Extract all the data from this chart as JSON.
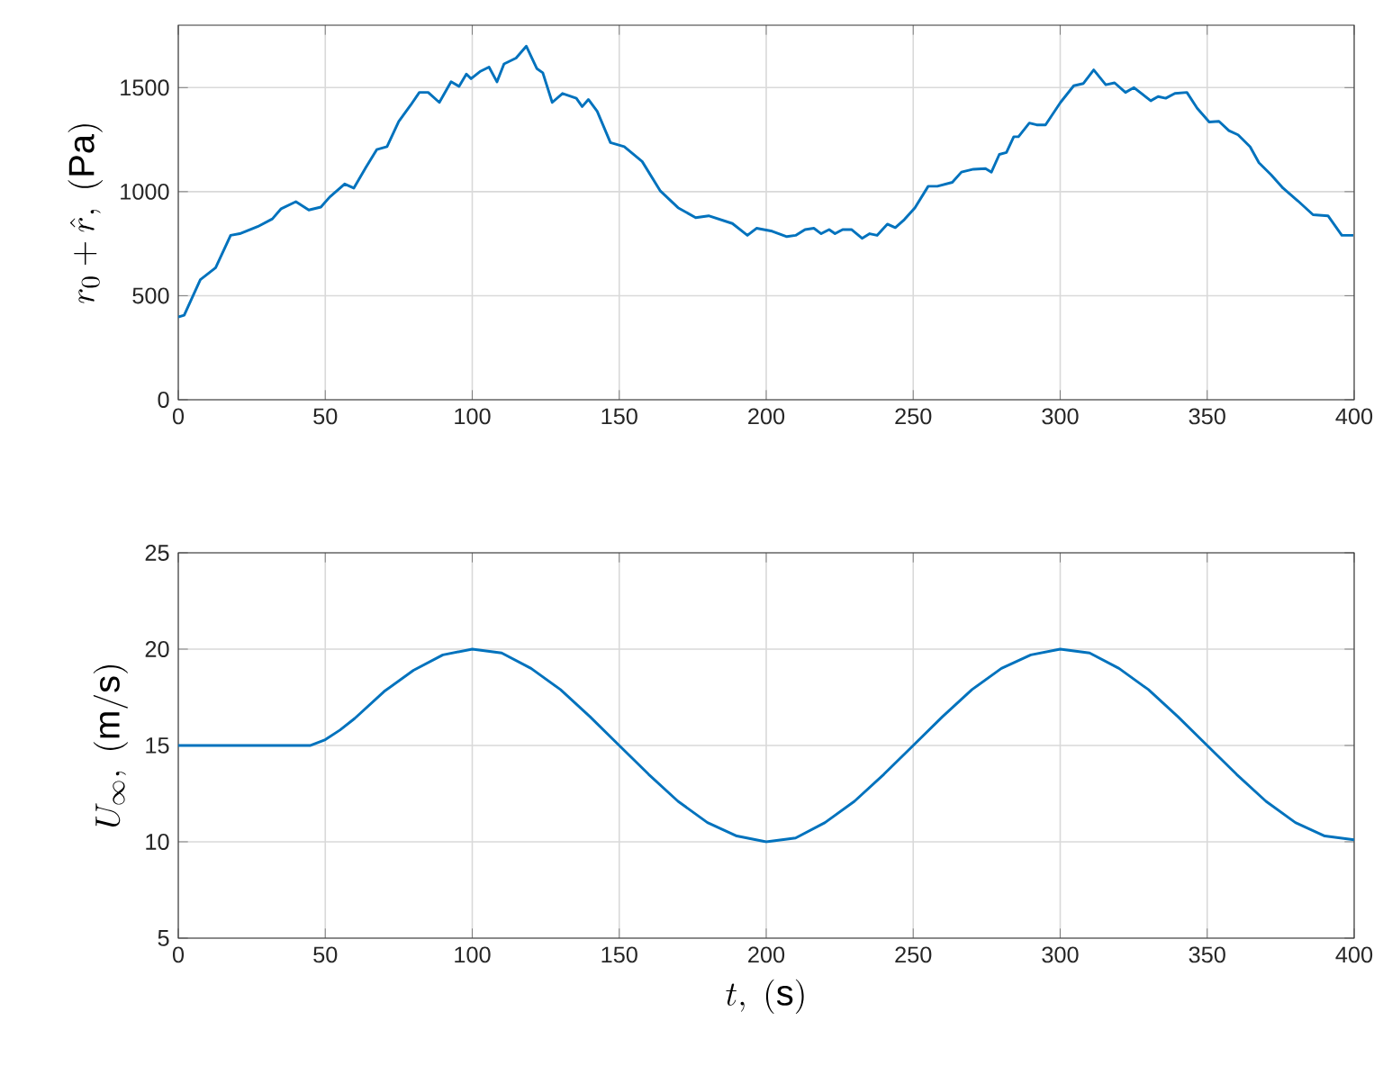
{
  "chart_data": [
    {
      "type": "line",
      "ylabel": "r_0+\\hat{r},\\ (\\mathrm{Pa})",
      "x": [
        0,
        2,
        7.5,
        12.7,
        17.8,
        20.9,
        27,
        32,
        35,
        40,
        44.4,
        48.5,
        51.5,
        56.6,
        59.7,
        63.8,
        67.5,
        71,
        75,
        79,
        82,
        85,
        88.8,
        92.8,
        95.5,
        98,
        99.6,
        102.6,
        105.7,
        108.4,
        110.8,
        114.9,
        118.4,
        122,
        124,
        127.2,
        130.7,
        135.4,
        137.4,
        139.5,
        142.5,
        147,
        151.7,
        157.8,
        164,
        170,
        176,
        180.4,
        188.5,
        193.6,
        196.7,
        202,
        207,
        210,
        213.2,
        216.2,
        218.7,
        221.4,
        223.4,
        226,
        229,
        232.6,
        235.2,
        237.7,
        241.2,
        243.9,
        247,
        250.6,
        255.1,
        258.2,
        263.3,
        266.4,
        270.5,
        274.6,
        276.6,
        279.3,
        281.7,
        284.2,
        285.8,
        289.5,
        292,
        295,
        300.1,
        304.6,
        307.9,
        311.4,
        315.5,
        318.5,
        322.2,
        325.1,
        330.8,
        333.3,
        335.9,
        339,
        343.1,
        346.6,
        350.7,
        354,
        357.4,
        360.5,
        364.6,
        367.6,
        371.7,
        375.8,
        380.9,
        386,
        391.1,
        395.8,
        399.7
      ],
      "series": [
        {
          "color": "#0072bd",
          "values": [
            398,
            406,
            577,
            634,
            790,
            798,
            832,
            869,
            918,
            952,
            912,
            926,
            974,
            1037,
            1017,
            1116,
            1202,
            1216,
            1338,
            1415,
            1477,
            1477,
            1429,
            1528,
            1506,
            1565,
            1543,
            1577,
            1599,
            1528,
            1614,
            1642,
            1699,
            1591,
            1571,
            1429,
            1472,
            1449,
            1409,
            1443,
            1386,
            1236,
            1216,
            1145,
            1003,
            923,
            875,
            884,
            847,
            790,
            824,
            810,
            784,
            790,
            818,
            824,
            798,
            818,
            798,
            818,
            818,
            776,
            798,
            790,
            844,
            827,
            866,
            923,
            1026,
            1026,
            1045,
            1094,
            1108,
            1111,
            1094,
            1179,
            1188,
            1264,
            1264,
            1330,
            1321,
            1321,
            1429,
            1509,
            1520,
            1585,
            1514,
            1523,
            1477,
            1500,
            1437,
            1457,
            1449,
            1472,
            1477,
            1401,
            1335,
            1338,
            1293,
            1273,
            1216,
            1139,
            1082,
            1017,
            955,
            889,
            884,
            790,
            790
          ]
        }
      ],
      "xlim": [
        0,
        400
      ],
      "xticks": [
        0,
        50,
        100,
        150,
        200,
        250,
        300,
        350,
        400
      ],
      "ylim": [
        0,
        1800
      ],
      "yticks": [
        0,
        500,
        1000,
        1500
      ],
      "grid": true
    },
    {
      "type": "line",
      "xlabel": "t,\\ (\\mathrm{s})",
      "ylabel": "U_\\infty,\\ (\\mathrm{m/s})",
      "x": [
        0,
        10,
        20,
        30,
        40,
        45,
        50,
        55,
        60,
        70,
        80,
        90,
        100,
        110,
        120,
        130,
        140,
        150,
        160,
        170,
        180,
        190,
        200,
        210,
        220,
        230,
        240,
        250,
        260,
        270,
        280,
        290,
        300,
        310,
        320,
        330,
        340,
        350,
        360,
        370,
        380,
        390,
        400
      ],
      "series": [
        {
          "color": "#0072bd",
          "values": [
            15.0,
            15.0,
            15.0,
            15.0,
            15.0,
            15.0,
            15.3,
            15.8,
            16.4,
            17.8,
            18.9,
            19.7,
            20.0,
            19.8,
            19.0,
            17.9,
            16.5,
            15.0,
            13.5,
            12.1,
            11.0,
            10.3,
            10.0,
            10.2,
            11.0,
            12.1,
            13.5,
            15.0,
            16.5,
            17.9,
            19.0,
            19.7,
            20.0,
            19.8,
            19.0,
            17.9,
            16.5,
            15.0,
            13.5,
            12.1,
            11.0,
            10.3,
            10.1
          ]
        }
      ],
      "xlim": [
        0,
        400
      ],
      "xticks": [
        0,
        50,
        100,
        150,
        200,
        250,
        300,
        350,
        400
      ],
      "ylim": [
        5,
        25
      ],
      "yticks": [
        5,
        10,
        15,
        20,
        25
      ],
      "grid": true
    }
  ]
}
